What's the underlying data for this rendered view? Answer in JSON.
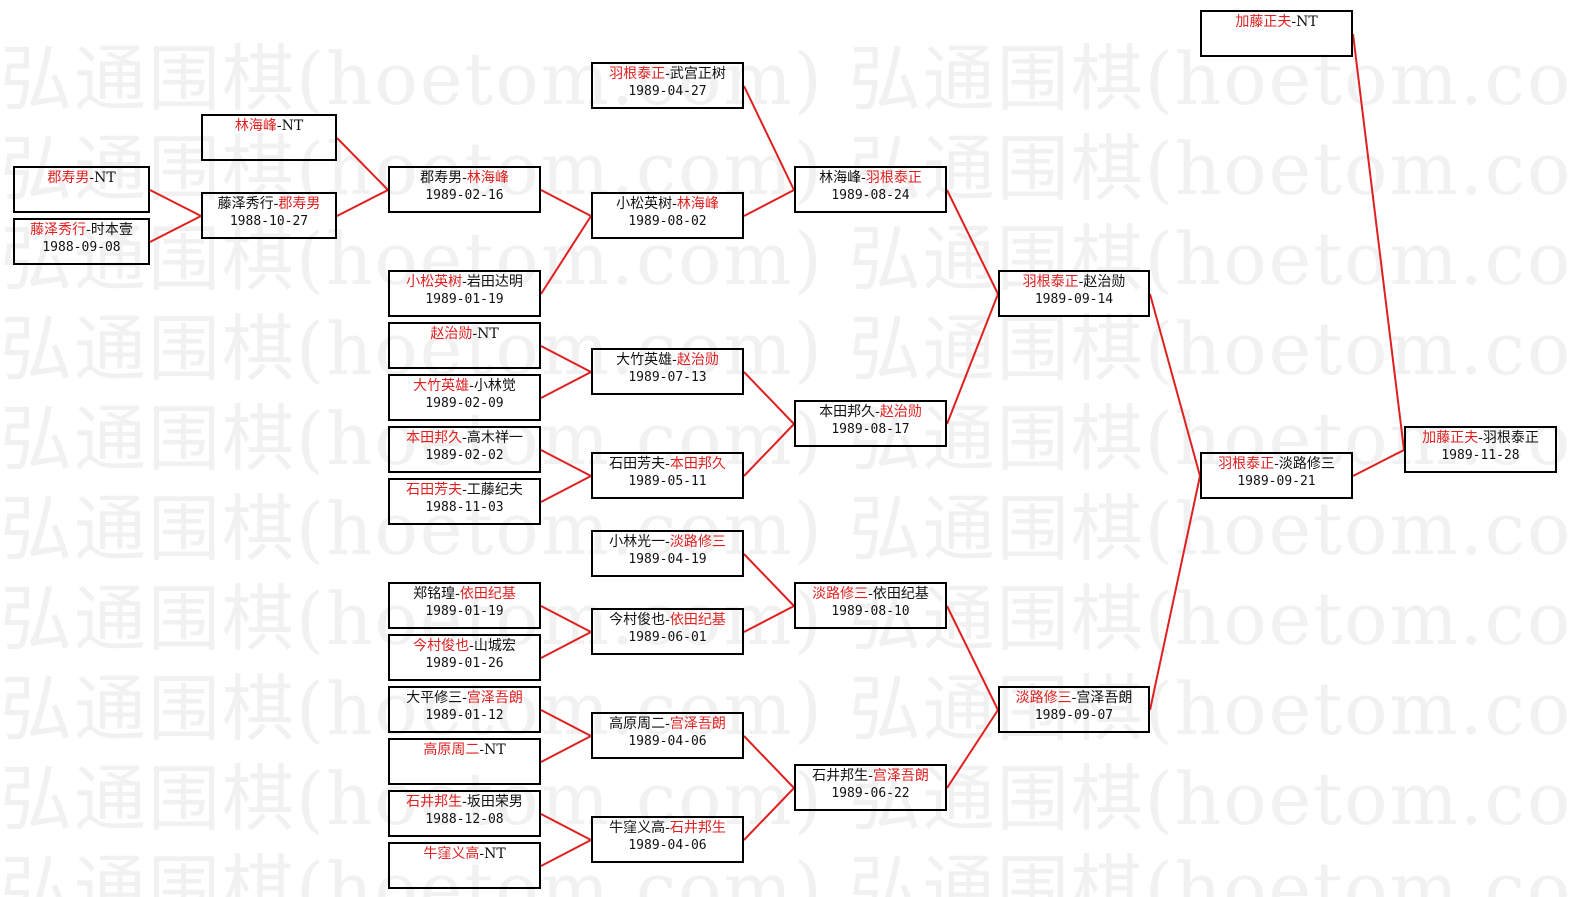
{
  "watermark": "弘通围棋(hoetom.com)",
  "colors": {
    "winner": "#e02020",
    "line": "#e02020",
    "box_border": "#000000"
  },
  "matches": [
    {
      "id": "A1",
      "p1": "郡寿男",
      "p2": "NT",
      "winner": 1,
      "date": ""
    },
    {
      "id": "A2",
      "p1": "藤泽秀行",
      "p2": "时本壹",
      "winner": 1,
      "date": "1988-09-08"
    },
    {
      "id": "B1",
      "p1": "林海峰",
      "p2": "NT",
      "winner": 1,
      "date": ""
    },
    {
      "id": "B2",
      "p1": "藤泽秀行",
      "p2": "郡寿男",
      "winner": 2,
      "date": "1988-10-27"
    },
    {
      "id": "C1",
      "p1": "郡寿男",
      "p2": "林海峰",
      "winner": 2,
      "date": "1989-02-16"
    },
    {
      "id": "C2",
      "p1": "小松英树",
      "p2": "岩田达明",
      "winner": 1,
      "date": "1989-01-19"
    },
    {
      "id": "C3",
      "p1": "赵治勋",
      "p2": "NT",
      "winner": 1,
      "date": ""
    },
    {
      "id": "C4",
      "p1": "大竹英雄",
      "p2": "小林觉",
      "winner": 1,
      "date": "1989-02-09"
    },
    {
      "id": "C5",
      "p1": "本田邦久",
      "p2": "高木祥一",
      "winner": 1,
      "date": "1989-02-02"
    },
    {
      "id": "C6",
      "p1": "石田芳夫",
      "p2": "工藤纪夫",
      "winner": 1,
      "date": "1988-11-03"
    },
    {
      "id": "C7",
      "p1": "郑铭瑝",
      "p2": "依田纪基",
      "winner": 2,
      "date": "1989-01-19"
    },
    {
      "id": "C8",
      "p1": "今村俊也",
      "p2": "山城宏",
      "winner": 1,
      "date": "1989-01-26"
    },
    {
      "id": "C9",
      "p1": "大平修三",
      "p2": "宫泽吾朗",
      "winner": 2,
      "date": "1989-01-12"
    },
    {
      "id": "C10",
      "p1": "高原周二",
      "p2": "NT",
      "winner": 1,
      "date": ""
    },
    {
      "id": "C11",
      "p1": "石井邦生",
      "p2": "坂田荣男",
      "winner": 1,
      "date": "1988-12-08"
    },
    {
      "id": "C12",
      "p1": "牛窪义高",
      "p2": "NT",
      "winner": 1,
      "date": ""
    },
    {
      "id": "D1",
      "p1": "羽根泰正",
      "p2": "武宫正树",
      "winner": 1,
      "date": "1989-04-27"
    },
    {
      "id": "D2",
      "p1": "小松英树",
      "p2": "林海峰",
      "winner": 2,
      "date": "1989-08-02"
    },
    {
      "id": "D3",
      "p1": "大竹英雄",
      "p2": "赵治勋",
      "winner": 2,
      "date": "1989-07-13"
    },
    {
      "id": "D4",
      "p1": "石田芳夫",
      "p2": "本田邦久",
      "winner": 2,
      "date": "1989-05-11"
    },
    {
      "id": "D5",
      "p1": "小林光一",
      "p2": "淡路修三",
      "winner": 2,
      "date": "1989-04-19"
    },
    {
      "id": "D6",
      "p1": "今村俊也",
      "p2": "依田纪基",
      "winner": 2,
      "date": "1989-06-01"
    },
    {
      "id": "D7",
      "p1": "高原周二",
      "p2": "宫泽吾朗",
      "winner": 2,
      "date": "1989-04-06"
    },
    {
      "id": "D8",
      "p1": "牛窪义高",
      "p2": "石井邦生",
      "winner": 2,
      "date": "1989-04-06"
    },
    {
      "id": "E1",
      "p1": "林海峰",
      "p2": "羽根泰正",
      "winner": 2,
      "date": "1989-08-24"
    },
    {
      "id": "E2",
      "p1": "本田邦久",
      "p2": "赵治勋",
      "winner": 2,
      "date": "1989-08-17"
    },
    {
      "id": "E3",
      "p1": "淡路修三",
      "p2": "依田纪基",
      "winner": 1,
      "date": "1989-08-10"
    },
    {
      "id": "E4",
      "p1": "石井邦生",
      "p2": "宫泽吾朗",
      "winner": 2,
      "date": "1989-06-22"
    },
    {
      "id": "F1",
      "p1": "羽根泰正",
      "p2": "赵治勋",
      "winner": 1,
      "date": "1989-09-14"
    },
    {
      "id": "F2",
      "p1": "淡路修三",
      "p2": "宫泽吾朗",
      "winner": 1,
      "date": "1989-09-07"
    },
    {
      "id": "G1",
      "p1": "加藤正夫",
      "p2": "NT",
      "winner": 1,
      "date": ""
    },
    {
      "id": "G2",
      "p1": "羽根泰正",
      "p2": "淡路修三",
      "winner": 1,
      "date": "1989-09-21"
    },
    {
      "id": "H1",
      "p1": "加藤正夫",
      "p2": "羽根泰正",
      "winner": 1,
      "date": "1989-11-28"
    }
  ],
  "feeds": [
    [
      "A1",
      "A2",
      "B2"
    ],
    [
      "B1",
      "B2",
      "C1"
    ],
    [
      "C1",
      "C2",
      "D2"
    ],
    [
      "D1",
      "D2",
      "E1"
    ],
    [
      "C3",
      "C4",
      "D3"
    ],
    [
      "C5",
      "C6",
      "D4"
    ],
    [
      "D3",
      "D4",
      "E2"
    ],
    [
      "E1",
      "E2",
      "F1"
    ],
    [
      "C7",
      "C8",
      "D6"
    ],
    [
      "D5",
      "D6",
      "E3"
    ],
    [
      "C9",
      "C10",
      "D7"
    ],
    [
      "C11",
      "C12",
      "D8"
    ],
    [
      "D7",
      "D8",
      "E4"
    ],
    [
      "E3",
      "E4",
      "F2"
    ],
    [
      "F1",
      "F2",
      "G2"
    ],
    [
      "G1",
      "G2",
      "H1"
    ]
  ]
}
